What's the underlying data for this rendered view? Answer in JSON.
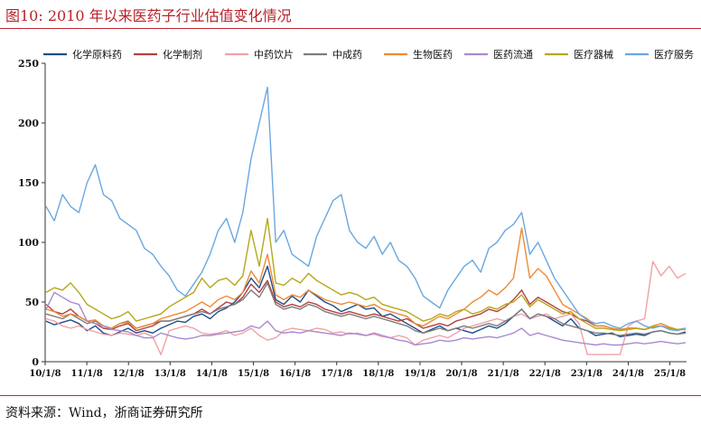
{
  "header": {
    "title": "图10:   2010 年以来医药子行业估值变化情况"
  },
  "footer": {
    "source": "资料来源：Wind，浙商证券研究所"
  },
  "chart_data": {
    "type": "line",
    "ylim": [
      0,
      250
    ],
    "y_ticks": [
      0,
      50,
      100,
      150,
      200,
      250
    ],
    "x_tick_labels": [
      "10/1/8",
      "11/1/8",
      "12/1/8",
      "13/1/8",
      "14/1/8",
      "15/1/8",
      "16/1/8",
      "17/1/8",
      "18/1/8",
      "19/1/8",
      "20/1/8",
      "21/1/8",
      "22/1/8",
      "23/1/8",
      "24/1/8",
      "25/1/8"
    ],
    "legend_position": "top",
    "series": [
      {
        "name": "化学原料药",
        "color": "#1f4e8c",
        "values": [
          34,
          31,
          33,
          35,
          32,
          26,
          30,
          24,
          22,
          25,
          28,
          24,
          26,
          24,
          28,
          31,
          34,
          33,
          38,
          40,
          36,
          42,
          45,
          50,
          58,
          70,
          62,
          80,
          52,
          48,
          55,
          50,
          60,
          55,
          50,
          47,
          42,
          45,
          48,
          44,
          45,
          38,
          40,
          36,
          32,
          28,
          24,
          27,
          30,
          26,
          28,
          26,
          24,
          27,
          30,
          28,
          32,
          38,
          44,
          36,
          40,
          38,
          34,
          30,
          36,
          28,
          26,
          22,
          23,
          24,
          21,
          22,
          23,
          22,
          25,
          26,
          24,
          23,
          25
        ]
      },
      {
        "name": "化学制剂",
        "color": "#b5413e",
        "values": [
          48,
          42,
          40,
          44,
          38,
          34,
          32,
          28,
          27,
          30,
          32,
          26,
          28,
          30,
          34,
          34,
          36,
          38,
          40,
          44,
          40,
          45,
          50,
          48,
          54,
          65,
          58,
          68,
          50,
          46,
          48,
          46,
          50,
          48,
          44,
          42,
          40,
          42,
          40,
          38,
          40,
          38,
          36,
          34,
          36,
          32,
          28,
          30,
          32,
          30,
          34,
          36,
          38,
          40,
          44,
          42,
          46,
          52,
          60,
          48,
          54,
          50,
          46,
          42,
          40,
          36,
          34,
          30,
          30,
          28,
          27,
          28,
          28,
          27,
          29,
          30,
          28,
          27,
          27
        ]
      },
      {
        "name": "中药饮片",
        "color": "#f1a1a6",
        "values": [
          36,
          34,
          30,
          28,
          30,
          27,
          25,
          23,
          22,
          24,
          23,
          22,
          24,
          21,
          6,
          26,
          28,
          30,
          28,
          24,
          23,
          24,
          26,
          22,
          24,
          28,
          22,
          18,
          20,
          26,
          28,
          27,
          26,
          28,
          27,
          24,
          25,
          23,
          24,
          22,
          23,
          21,
          20,
          22,
          20,
          14,
          18,
          20,
          22,
          20,
          24,
          28,
          30,
          32,
          34,
          36,
          34,
          38,
          40,
          36,
          38,
          40,
          36,
          38,
          40,
          32,
          6,
          6,
          6,
          6,
          6,
          30,
          34,
          36,
          84,
          72,
          80,
          70,
          74
        ]
      },
      {
        "name": "中成药",
        "color": "#7d7d7d",
        "values": [
          40,
          38,
          36,
          40,
          36,
          32,
          34,
          30,
          28,
          32,
          34,
          28,
          30,
          32,
          34,
          34,
          36,
          38,
          40,
          42,
          40,
          44,
          46,
          48,
          52,
          60,
          54,
          66,
          48,
          44,
          46,
          44,
          48,
          46,
          42,
          40,
          38,
          40,
          38,
          36,
          38,
          36,
          34,
          32,
          30,
          26,
          24,
          26,
          28,
          26,
          28,
          30,
          28,
          30,
          32,
          30,
          34,
          38,
          44,
          36,
          40,
          38,
          36,
          32,
          30,
          28,
          26,
          24,
          24,
          23,
          22,
          23,
          24,
          23,
          25,
          26,
          24,
          23,
          24
        ]
      },
      {
        "name": "生物医药",
        "color": "#ee8a35",
        "values": [
          44,
          42,
          38,
          40,
          38,
          34,
          35,
          30,
          28,
          32,
          33,
          28,
          30,
          32,
          36,
          38,
          40,
          42,
          46,
          50,
          46,
          52,
          55,
          52,
          58,
          76,
          66,
          90,
          56,
          52,
          56,
          54,
          60,
          56,
          52,
          50,
          48,
          50,
          48,
          46,
          48,
          44,
          42,
          40,
          38,
          32,
          30,
          34,
          38,
          36,
          40,
          44,
          50,
          54,
          60,
          56,
          62,
          70,
          112,
          70,
          78,
          72,
          60,
          48,
          44,
          40,
          36,
          30,
          30,
          28,
          27,
          28,
          28,
          27,
          30,
          32,
          29,
          27,
          27
        ]
      },
      {
        "name": "医药流通",
        "color": "#a88ad0",
        "values": [
          44,
          58,
          54,
          50,
          48,
          34,
          32,
          30,
          27,
          26,
          25,
          22,
          20,
          20,
          24,
          22,
          20,
          19,
          20,
          22,
          22,
          23,
          24,
          25,
          26,
          30,
          28,
          34,
          26,
          24,
          25,
          24,
          26,
          25,
          24,
          23,
          22,
          24,
          23,
          22,
          24,
          22,
          20,
          18,
          17,
          14,
          15,
          16,
          18,
          17,
          18,
          20,
          19,
          20,
          21,
          20,
          22,
          24,
          28,
          22,
          24,
          22,
          20,
          18,
          17,
          16,
          15,
          14,
          15,
          14,
          14,
          15,
          16,
          15,
          16,
          17,
          16,
          15,
          16
        ]
      },
      {
        "name": "医疗器械",
        "color": "#b6a71a",
        "values": [
          58,
          62,
          60,
          66,
          58,
          48,
          44,
          40,
          36,
          38,
          42,
          34,
          36,
          38,
          40,
          46,
          50,
          54,
          58,
          70,
          62,
          68,
          70,
          64,
          72,
          110,
          80,
          120,
          66,
          64,
          70,
          66,
          74,
          68,
          64,
          60,
          56,
          58,
          56,
          52,
          54,
          48,
          46,
          44,
          42,
          38,
          34,
          36,
          40,
          38,
          42,
          44,
          40,
          42,
          46,
          44,
          48,
          50,
          56,
          46,
          52,
          48,
          44,
          40,
          42,
          36,
          32,
          28,
          28,
          27,
          26,
          27,
          28,
          27,
          29,
          30,
          28,
          27,
          28
        ]
      },
      {
        "name": "医疗服务",
        "color": "#6aa7e0",
        "values": [
          130,
          118,
          140,
          130,
          125,
          150,
          165,
          140,
          135,
          120,
          115,
          110,
          95,
          90,
          80,
          72,
          60,
          55,
          65,
          75,
          90,
          110,
          120,
          100,
          125,
          170,
          200,
          230,
          100,
          110,
          90,
          85,
          80,
          105,
          120,
          135,
          140,
          110,
          100,
          95,
          105,
          90,
          100,
          85,
          80,
          70,
          55,
          50,
          45,
          60,
          70,
          80,
          85,
          75,
          95,
          100,
          110,
          115,
          125,
          90,
          100,
          85,
          70,
          60,
          50,
          40,
          35,
          32,
          33,
          30,
          28,
          32,
          34,
          30,
          28,
          30,
          27,
          26,
          28
        ]
      }
    ]
  }
}
